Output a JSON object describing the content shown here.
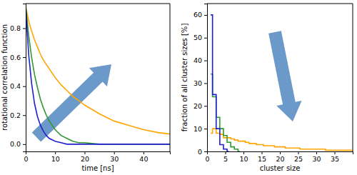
{
  "chart_data": [
    {
      "type": "line",
      "x_label": "time [ns]",
      "y_label": "rotational correlation function",
      "x": [
        0,
        1,
        2,
        3,
        4,
        5,
        6,
        7,
        8,
        10,
        12,
        14,
        16,
        18,
        20,
        25,
        30,
        35,
        40,
        45,
        49
      ],
      "series": [
        {
          "color": "#ffa500",
          "values": [
            0.95,
            0.85,
            0.78,
            0.72,
            0.67,
            0.62,
            0.58,
            0.55,
            0.52,
            0.46,
            0.41,
            0.37,
            0.33,
            0.3,
            0.27,
            0.21,
            0.16,
            0.13,
            0.1,
            0.08,
            0.07
          ]
        },
        {
          "color": "#2e9a2e",
          "values": [
            0.95,
            0.75,
            0.6,
            0.48,
            0.39,
            0.31,
            0.25,
            0.2,
            0.16,
            0.1,
            0.06,
            0.04,
            0.02,
            0.01,
            0.01,
            0,
            0,
            0,
            0,
            0,
            0
          ]
        },
        {
          "color": "#1f1fd0",
          "values": [
            0.95,
            0.62,
            0.42,
            0.28,
            0.19,
            0.13,
            0.09,
            0.06,
            0.04,
            0.02,
            0.01,
            0,
            0,
            0,
            0,
            0,
            0,
            0,
            0,
            0,
            0
          ]
        }
      ],
      "xlim": [
        0,
        49
      ],
      "ylim": [
        -0.05,
        0.97
      ],
      "xticks": [
        0,
        10,
        20,
        30,
        40
      ],
      "yticks": [
        {
          "value": 0,
          "label": "0.0"
        },
        0.2,
        0.4,
        0.6,
        0.8
      ]
    },
    {
      "type": "step",
      "x_label": "cluster size",
      "y_label": "fraction of all cluster sizes [%]",
      "series": [
        {
          "color": "#ffa500",
          "x": [
            1,
            2,
            3,
            4,
            5,
            6,
            7,
            8,
            9,
            10,
            11,
            12,
            13,
            14,
            15,
            16,
            17,
            18,
            19,
            20,
            21,
            22,
            23,
            24,
            25,
            26,
            27,
            28,
            29,
            30,
            31,
            32,
            33,
            34,
            35,
            36,
            37,
            38,
            39,
            40
          ],
          "values": [
            8,
            10,
            8,
            7.5,
            6,
            6,
            5.5,
            5,
            4.5,
            4.5,
            4,
            3.5,
            3.5,
            3,
            3,
            2.5,
            2.5,
            2.5,
            2,
            2,
            2,
            1.5,
            1.5,
            1.5,
            1.5,
            1,
            1,
            1,
            1,
            1,
            1,
            1,
            0.5,
            0.5,
            0.5,
            0.5,
            0.5,
            0.5,
            0.5,
            0.5
          ]
        },
        {
          "color": "#2e9a2e",
          "x": [
            1,
            2,
            3,
            4,
            5,
            6,
            7,
            8,
            9
          ],
          "values": [
            34,
            24,
            15,
            10,
            7,
            4,
            2,
            1,
            0
          ]
        },
        {
          "color": "#1f1fd0",
          "x": [
            1,
            2,
            3,
            4,
            5,
            6
          ],
          "values": [
            60,
            25,
            10,
            3,
            1,
            0
          ]
        }
      ],
      "xlim": [
        0,
        40
      ],
      "ylim": [
        0,
        65
      ],
      "xticks": [
        0,
        5,
        10,
        15,
        20,
        25,
        30,
        35
      ],
      "yticks": [
        0,
        10,
        20,
        30,
        40,
        50,
        60
      ]
    }
  ]
}
